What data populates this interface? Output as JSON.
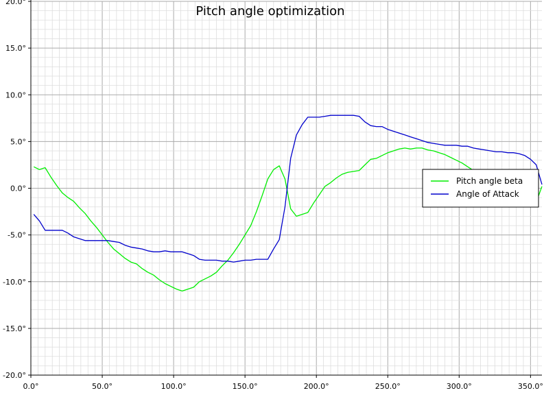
{
  "chart_data": {
    "type": "line",
    "title": "Pitch angle optimization",
    "xlabel": "",
    "ylabel": "",
    "xlim": [
      0,
      358
    ],
    "ylim": [
      -20,
      20
    ],
    "x_ticks": [
      0,
      50,
      100,
      150,
      200,
      250,
      300,
      350
    ],
    "x_tick_labels": [
      "0.0°",
      "50.0°",
      "100.0°",
      "150.0°",
      "200.0°",
      "250.0°",
      "300.0°",
      "350.0°"
    ],
    "y_ticks": [
      -20,
      -15,
      -10,
      -5,
      0,
      5,
      10,
      15,
      20
    ],
    "y_tick_labels": [
      "-20.0°",
      "-15.0°",
      "-10.0°",
      "-5.0°",
      "0.0°",
      "5.0°",
      "10.0°",
      "15.0°",
      "20.0°"
    ],
    "grid": true,
    "legend_position": "right",
    "series": [
      {
        "name": "Pitch angle beta",
        "color": "#00ee00",
        "x": [
          2,
          6,
          10,
          14,
          18,
          22,
          26,
          30,
          34,
          38,
          42,
          46,
          50,
          54,
          58,
          62,
          66,
          70,
          74,
          78,
          82,
          86,
          90,
          94,
          98,
          102,
          106,
          110,
          114,
          118,
          122,
          126,
          130,
          134,
          138,
          142,
          146,
          150,
          154,
          158,
          162,
          166,
          170,
          174,
          178,
          182,
          186,
          190,
          194,
          198,
          202,
          206,
          210,
          214,
          218,
          222,
          226,
          230,
          234,
          238,
          242,
          246,
          250,
          254,
          258,
          262,
          266,
          270,
          274,
          278,
          282,
          286,
          290,
          294,
          298,
          302,
          306,
          310,
          314,
          318,
          322,
          326,
          330,
          334,
          338,
          342,
          346,
          350,
          354,
          358
        ],
        "values": [
          2.3,
          2.0,
          2.2,
          1.2,
          0.3,
          -0.5,
          -1.0,
          -1.4,
          -2.1,
          -2.7,
          -3.5,
          -4.2,
          -5.0,
          -5.8,
          -6.5,
          -7.0,
          -7.5,
          -7.9,
          -8.1,
          -8.6,
          -9.0,
          -9.3,
          -9.8,
          -10.2,
          -10.5,
          -10.8,
          -11.0,
          -10.8,
          -10.6,
          -10.0,
          -9.7,
          -9.4,
          -9.0,
          -8.3,
          -7.7,
          -6.9,
          -6.0,
          -5.0,
          -4.0,
          -2.5,
          -0.8,
          1.0,
          2.0,
          2.4,
          1.0,
          -2.2,
          -3.0,
          -2.8,
          -2.6,
          -1.6,
          -0.7,
          0.2,
          0.6,
          1.1,
          1.5,
          1.7,
          1.8,
          1.9,
          2.5,
          3.1,
          3.2,
          3.5,
          3.8,
          4.0,
          4.2,
          4.3,
          4.2,
          4.3,
          4.3,
          4.1,
          4.0,
          3.8,
          3.6,
          3.3,
          3.0,
          2.7,
          2.3,
          1.9,
          1.7,
          1.3,
          0.9,
          0.5,
          0.0,
          -0.4,
          -0.9,
          -1.1,
          -1.4,
          -1.3,
          -1.5,
          0.2
        ]
      },
      {
        "name": "Angle of Attack",
        "color": "#0000cc",
        "x": [
          2,
          6,
          10,
          14,
          18,
          22,
          26,
          30,
          34,
          38,
          42,
          46,
          50,
          54,
          58,
          62,
          66,
          70,
          74,
          78,
          82,
          86,
          90,
          94,
          98,
          102,
          106,
          110,
          114,
          118,
          122,
          126,
          130,
          134,
          138,
          142,
          146,
          150,
          154,
          158,
          162,
          166,
          170,
          174,
          178,
          182,
          186,
          190,
          194,
          198,
          202,
          206,
          210,
          214,
          218,
          222,
          226,
          230,
          234,
          238,
          242,
          246,
          250,
          254,
          258,
          262,
          266,
          270,
          274,
          278,
          282,
          286,
          290,
          294,
          298,
          302,
          306,
          310,
          314,
          318,
          322,
          326,
          330,
          334,
          338,
          342,
          346,
          350,
          354,
          358
        ],
        "values": [
          -2.8,
          -3.5,
          -4.5,
          -4.5,
          -4.5,
          -4.5,
          -4.8,
          -5.2,
          -5.4,
          -5.6,
          -5.6,
          -5.6,
          -5.6,
          -5.6,
          -5.7,
          -5.8,
          -6.1,
          -6.3,
          -6.4,
          -6.5,
          -6.7,
          -6.8,
          -6.8,
          -6.7,
          -6.8,
          -6.8,
          -6.8,
          -7.0,
          -7.2,
          -7.6,
          -7.7,
          -7.7,
          -7.7,
          -7.8,
          -7.8,
          -7.9,
          -7.8,
          -7.7,
          -7.7,
          -7.6,
          -7.6,
          -7.6,
          -6.5,
          -5.5,
          -2.0,
          3.2,
          5.7,
          6.8,
          7.6,
          7.6,
          7.6,
          7.7,
          7.8,
          7.8,
          7.8,
          7.8,
          7.8,
          7.7,
          7.1,
          6.7,
          6.6,
          6.6,
          6.3,
          6.1,
          5.9,
          5.7,
          5.5,
          5.3,
          5.1,
          4.9,
          4.8,
          4.7,
          4.6,
          4.6,
          4.6,
          4.5,
          4.5,
          4.3,
          4.2,
          4.1,
          4.0,
          3.9,
          3.9,
          3.8,
          3.8,
          3.7,
          3.5,
          3.1,
          2.5,
          0.4
        ]
      }
    ]
  }
}
